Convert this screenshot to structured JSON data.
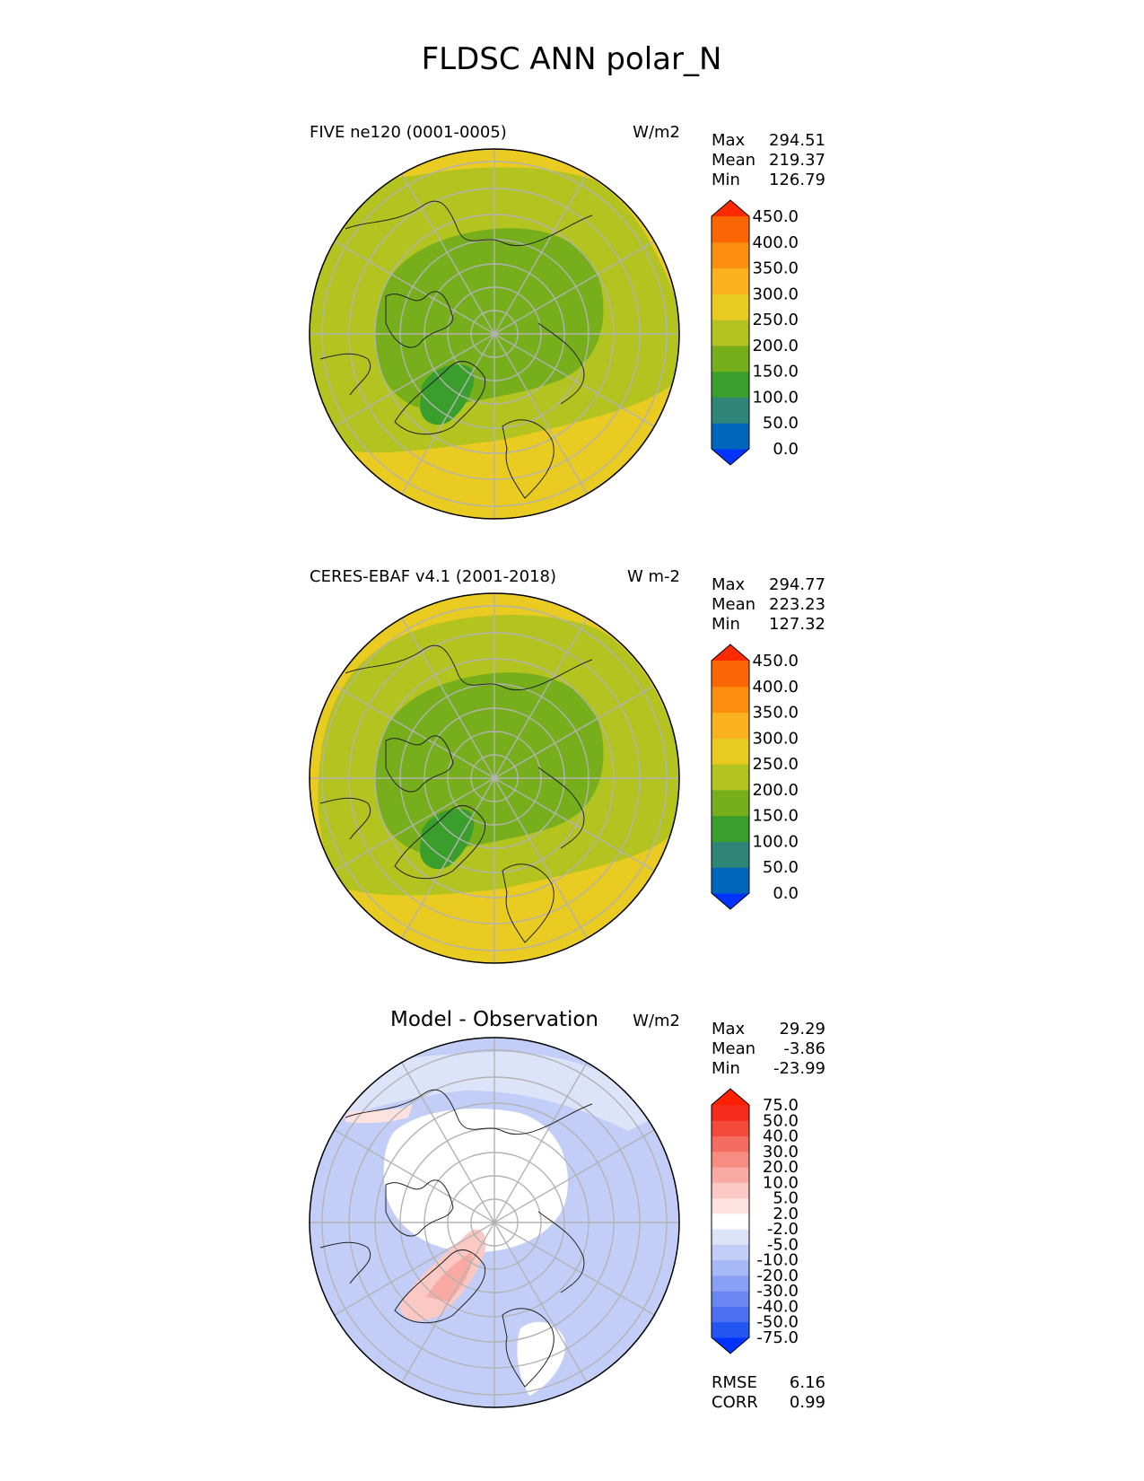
{
  "figure_title": "FLDSC ANN polar_N",
  "stat_labels": {
    "max": "Max",
    "mean": "Mean",
    "min": "Min",
    "rmse": "RMSE",
    "corr": "CORR"
  },
  "panels": [
    {
      "id": "model",
      "title": "FIVE ne120 (0001-0005)",
      "units": "W/m2",
      "stats": {
        "max": "294.51",
        "mean": "219.37",
        "min": "126.79"
      },
      "field": "abs"
    },
    {
      "id": "obs",
      "title": "CERES-EBAF v4.1 (2001-2018)",
      "units": "W m-2",
      "stats": {
        "max": "294.77",
        "mean": "223.23",
        "min": "127.32"
      },
      "field": "abs"
    },
    {
      "id": "diff",
      "title": "Model - Observation",
      "units": "W/m2",
      "stats": {
        "max": "29.29",
        "mean": "-3.86",
        "min": "-23.99",
        "rmse": "6.16",
        "corr": "0.99"
      },
      "field": "diff"
    }
  ],
  "chart_data": [
    {
      "type": "heatmap",
      "projection": "north polar stereographic",
      "title": "FIVE ne120 (0001-0005)",
      "units": "W/m2",
      "stats": {
        "max": 294.51,
        "mean": 219.37,
        "min": 126.79
      },
      "colorbar": {
        "levels": [
          0,
          50,
          100,
          150,
          200,
          250,
          300,
          350,
          400,
          450
        ],
        "tick_labels": [
          "450.0",
          "400.0",
          "350.0",
          "300.0",
          "250.0",
          "200.0",
          "150.0",
          "100.0",
          "50.0",
          "0.0"
        ],
        "colors": [
          "#0033ff",
          "#0066bb",
          "#2f8577",
          "#3a9e2c",
          "#76ae1c",
          "#b3c31f",
          "#e9cb22",
          "#fcb11e",
          "#fb8f10",
          "#fb6605",
          "#ff2a00"
        ],
        "extend": "both"
      }
    },
    {
      "type": "heatmap",
      "projection": "north polar stereographic",
      "title": "CERES-EBAF v4.1 (2001-2018)",
      "units": "W m-2",
      "stats": {
        "max": 294.77,
        "mean": 223.23,
        "min": 127.32
      },
      "colorbar": {
        "levels": [
          0,
          50,
          100,
          150,
          200,
          250,
          300,
          350,
          400,
          450
        ],
        "tick_labels": [
          "450.0",
          "400.0",
          "350.0",
          "300.0",
          "250.0",
          "200.0",
          "150.0",
          "100.0",
          "50.0",
          "0.0"
        ],
        "colors": [
          "#0033ff",
          "#0066bb",
          "#2f8577",
          "#3a9e2c",
          "#76ae1c",
          "#b3c31f",
          "#e9cb22",
          "#fcb11e",
          "#fb8f10",
          "#fb6605",
          "#ff2a00"
        ],
        "extend": "both"
      }
    },
    {
      "type": "heatmap",
      "projection": "north polar stereographic",
      "title": "Model - Observation",
      "units": "W/m2",
      "stats": {
        "max": 29.29,
        "mean": -3.86,
        "min": -23.99,
        "rmse": 6.16,
        "corr": 0.99
      },
      "colorbar": {
        "levels": [
          -75,
          -50,
          -40,
          -30,
          -20,
          -10,
          -5,
          -2,
          2,
          5,
          10,
          20,
          30,
          40,
          50,
          75
        ],
        "tick_labels": [
          "75.0",
          "50.0",
          "40.0",
          "30.0",
          "20.0",
          "10.0",
          "5.0",
          "2.0",
          "-2.0",
          "-5.0",
          "-10.0",
          "-20.0",
          "-30.0",
          "-40.0",
          "-50.0",
          "-75.0"
        ],
        "colors": [
          "#0033ff",
          "#2255f2",
          "#4a6ff0",
          "#6a86f2",
          "#8aa0f4",
          "#a6b8f6",
          "#c2cef8",
          "#dde4fa",
          "#ffffff",
          "#fde2e0",
          "#fbc8c3",
          "#f9aaa3",
          "#f78c82",
          "#f56c60",
          "#f44a3b",
          "#f52a1a",
          "#ff2000"
        ],
        "extend": "both"
      }
    }
  ]
}
